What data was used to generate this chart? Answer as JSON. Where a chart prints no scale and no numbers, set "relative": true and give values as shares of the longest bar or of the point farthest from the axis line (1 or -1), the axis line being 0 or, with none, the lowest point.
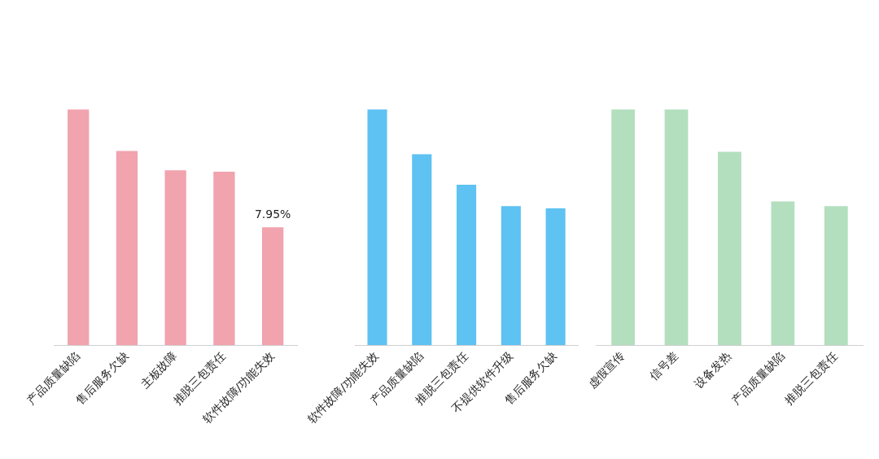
{
  "chart_data": [
    {
      "type": "bar",
      "categories": [
        "产品质量缺陷",
        "售后服务欠缺",
        "主板故障",
        "推脱三包责任",
        "软件故障/功能失效"
      ],
      "values": [
        15.9,
        13.1,
        11.8,
        11.7,
        7.95
      ],
      "value_labels": [
        null,
        null,
        null,
        null,
        "7.95%"
      ],
      "color": "#f1a3ae",
      "tick_labels": "x",
      "grid": false
    },
    {
      "type": "bar",
      "categories": [
        "软件故障/功能失效",
        "产品质量缺陷",
        "推脱三包责任",
        "不提供软件升级",
        "售后服务欠缺"
      ],
      "values": [
        1,
        0.81,
        0.68,
        0.59,
        0.58
      ],
      "relative": true,
      "color": "#5ec2f2",
      "tick_labels": "x",
      "grid": false
    },
    {
      "type": "bar",
      "categories": [
        "虚假宣传",
        "信号差",
        "设备发热",
        "产品质量缺陷",
        "推脱三包责任"
      ],
      "values": [
        1,
        1,
        0.82,
        0.61,
        0.59
      ],
      "relative": true,
      "color": "#b3dfbf",
      "tick_labels": "x",
      "grid": false
    }
  ]
}
